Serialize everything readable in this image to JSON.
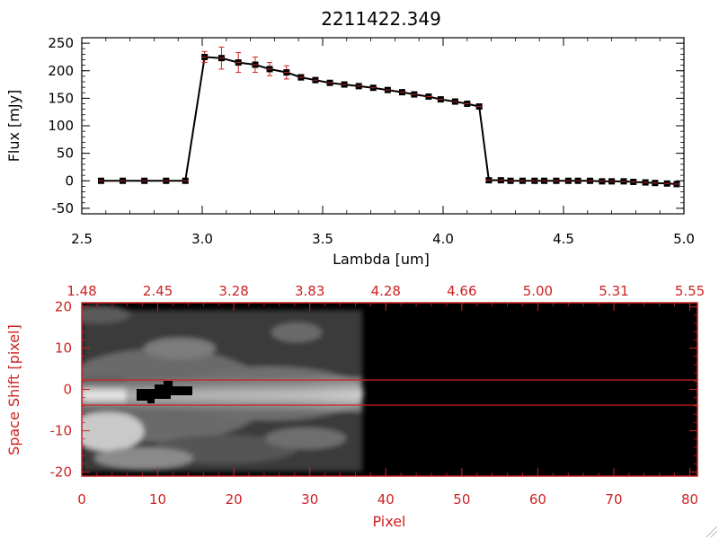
{
  "chart_data": [
    {
      "type": "line",
      "title": "2211422.349",
      "xlabel": "Lambda [um]",
      "ylabel": "Flux [mJy]",
      "xlim": [
        2.5,
        5.0
      ],
      "ylim": [
        -60,
        260
      ],
      "x_ticks": [
        2.5,
        3.0,
        3.5,
        4.0,
        4.5,
        5.0
      ],
      "x_tick_labels": [
        "2.5",
        "3.0",
        "3.5",
        "4.0",
        "4.5",
        "5.0"
      ],
      "y_ticks": [
        -50,
        0,
        50,
        100,
        150,
        200,
        250
      ],
      "y_tick_labels": [
        "-50",
        "0",
        "50",
        "100",
        "150",
        "200",
        "250"
      ],
      "grid": false,
      "series": [
        {
          "x": [
            2.58,
            2.67,
            2.76,
            2.85,
            2.93,
            3.01,
            3.08,
            3.15,
            3.22,
            3.28,
            3.35,
            3.41,
            3.47,
            3.53,
            3.59,
            3.65,
            3.71,
            3.77,
            3.83,
            3.88,
            3.94,
            3.99,
            4.05,
            4.1,
            4.15,
            4.19,
            4.24,
            4.28,
            4.33,
            4.38,
            4.42,
            4.47,
            4.52,
            4.56,
            4.61,
            4.66,
            4.7,
            4.75,
            4.79,
            4.84,
            4.88,
            4.93,
            4.97
          ],
          "y": [
            0,
            0,
            0,
            0,
            0,
            225,
            223,
            215,
            211,
            203,
            197,
            188,
            183,
            178,
            175,
            172,
            169,
            165,
            161,
            157,
            153,
            148,
            144,
            140,
            135,
            1,
            1,
            0,
            0,
            0,
            0,
            0,
            0,
            0,
            0,
            -1,
            -1,
            -1,
            -2,
            -3,
            -4,
            -5,
            -6
          ],
          "yerr": [
            0,
            0,
            0,
            0,
            0,
            10,
            20,
            18,
            14,
            12,
            12,
            5,
            3,
            3,
            2,
            2,
            2,
            2,
            2,
            2,
            2,
            2,
            2,
            2,
            2,
            0,
            0,
            0,
            0,
            0,
            0,
            0,
            0,
            0,
            0,
            0,
            0,
            0,
            0,
            0,
            0,
            0,
            0
          ]
        }
      ],
      "colors": {
        "line": "#000000",
        "marker": "#000000",
        "error": "#cc2222"
      }
    },
    {
      "type": "heatmap",
      "xlabel": "Pixel",
      "ylabel": "Space Shift [pixel]",
      "xlim": [
        0,
        81
      ],
      "ylim": [
        -21,
        21
      ],
      "x_ticks": [
        0,
        10,
        20,
        30,
        40,
        50,
        60,
        70,
        80
      ],
      "x_tick_labels": [
        "0",
        "10",
        "20",
        "30",
        "40",
        "50",
        "60",
        "70",
        "80"
      ],
      "y_ticks": [
        -20,
        -10,
        0,
        10,
        20
      ],
      "y_tick_labels": [
        "-20",
        "-10",
        "0",
        "10",
        "20"
      ],
      "top_axis_tick_labels": [
        "1.48",
        "2.45",
        "3.28",
        "3.83",
        "4.28",
        "4.66",
        "5.00",
        "5.31",
        "5.55"
      ],
      "signal_extent_pixels": [
        0,
        37
      ],
      "horizontal_lines_y": [
        3,
        -3
      ],
      "colors": {
        "axis": "#cc2222",
        "background": "#000000"
      }
    }
  ]
}
